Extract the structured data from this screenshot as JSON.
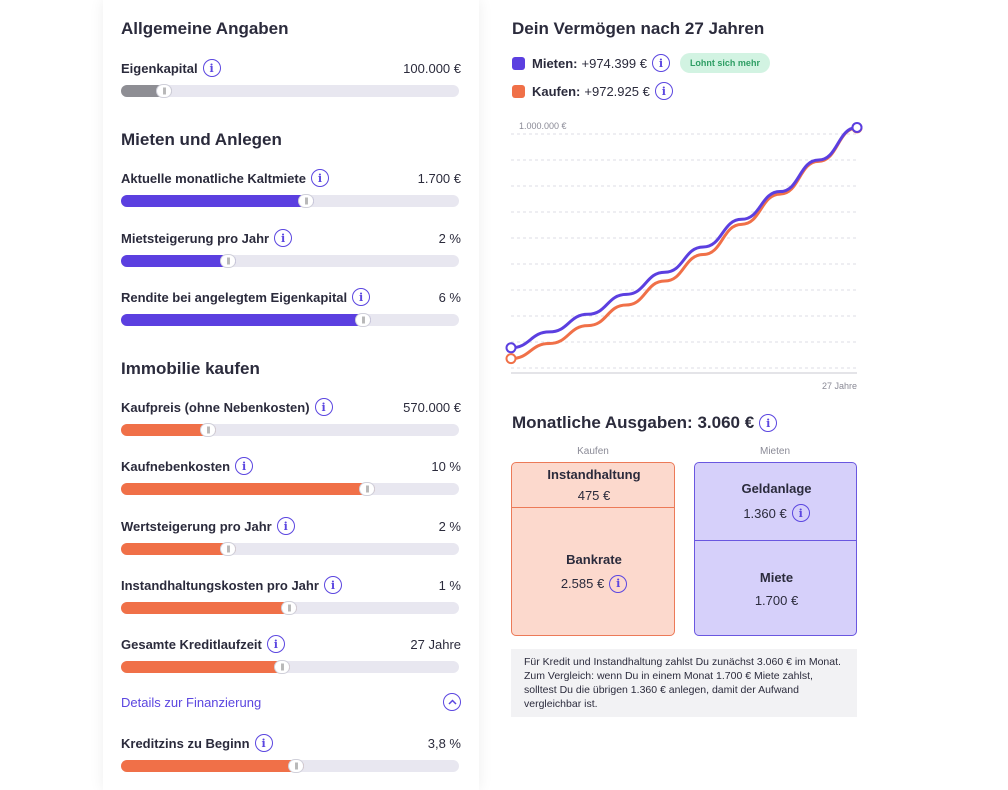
{
  "general": {
    "title": "Allgemeine Angaben",
    "equity": {
      "label": "Eigenkapital",
      "value": "100.000 €",
      "slider_fraction": 0.15
    }
  },
  "rent_invest": {
    "title": "Mieten und Anlegen",
    "rows": [
      {
        "label": "Aktuelle monatliche Kaltmiete",
        "value": "1.700 €",
        "slider_fraction": 0.57
      },
      {
        "label": "Mietsteigerung pro Jahr",
        "value": "2 %",
        "slider_fraction": 0.34
      },
      {
        "label": "Rendite bei angelegtem Eigenkapital",
        "value": "6 %",
        "slider_fraction": 0.74
      }
    ]
  },
  "buy": {
    "title": "Immobilie kaufen",
    "rows": [
      {
        "label": "Kaufpreis (ohne Nebenkosten)",
        "value": "570.000 €",
        "slider_fraction": 0.28
      },
      {
        "label": "Kaufnebenkosten",
        "value": "10 %",
        "slider_fraction": 0.75
      },
      {
        "label": "Wertsteigerung pro Jahr",
        "value": "2 %",
        "slider_fraction": 0.34
      },
      {
        "label": "Instandhaltungskosten pro Jahr",
        "value": "1 %",
        "slider_fraction": 0.52
      },
      {
        "label": "Gesamte Kreditlaufzeit",
        "value": "27 Jahre",
        "slider_fraction": 0.5
      }
    ],
    "details_link": "Details zur Finanzierung",
    "interest": {
      "label": "Kreditzins zu Beginn",
      "value": "3,8 %",
      "slider_fraction": 0.54
    }
  },
  "wealth": {
    "title": "Dein Vermögen nach 27 Jahren",
    "rent_label": "Mieten:",
    "rent_value": "+974.399 €",
    "badge": "Lohnt sich mehr",
    "buy_label": "Kaufen:",
    "buy_value": "+972.925 €",
    "colors": {
      "rent": "#5b3fe0",
      "buy": "#f07048"
    }
  },
  "chart_data": {
    "type": "line",
    "y_tick_label": "1.000.000 €",
    "x_tick_label": "27 Jahre",
    "ylim": [
      0,
      1000000
    ],
    "xlim": [
      0,
      27
    ],
    "grid": true,
    "series": [
      {
        "name": "Mieten",
        "x": [
          0,
          3,
          6,
          9,
          12,
          15,
          18,
          21,
          24,
          27
        ],
        "values": [
          100000,
          163000,
          233000,
          312000,
          400000,
          500000,
          610000,
          720000,
          845000,
          974399
        ]
      },
      {
        "name": "Kaufen",
        "x": [
          0,
          3,
          6,
          9,
          12,
          15,
          18,
          21,
          24,
          27
        ],
        "values": [
          57000,
          117000,
          188000,
          270000,
          365000,
          470000,
          590000,
          710000,
          840000,
          972925
        ]
      }
    ]
  },
  "expenses": {
    "title": "Monatliche Ausgaben: 3.060 €",
    "buy_col": "Kaufen",
    "rent_col": "Mieten",
    "maintenance": {
      "label": "Instandhaltung",
      "value": "475 €"
    },
    "bank_rate": {
      "label": "Bankrate",
      "value": "2.585 €"
    },
    "investment": {
      "label": "Geldanlage",
      "value": "1.360 €"
    },
    "rent": {
      "label": "Miete",
      "value": "1.700 €"
    },
    "note": "Für Kredit und Instandhaltung zahlst Du zunächst 3.060 € im Monat. Zum Vergleich: wenn Du in einem Monat 1.700 € Miete zahlst, solltest Du die übrigen 1.360 € anlegen, damit der Aufwand vergleichbar ist."
  }
}
